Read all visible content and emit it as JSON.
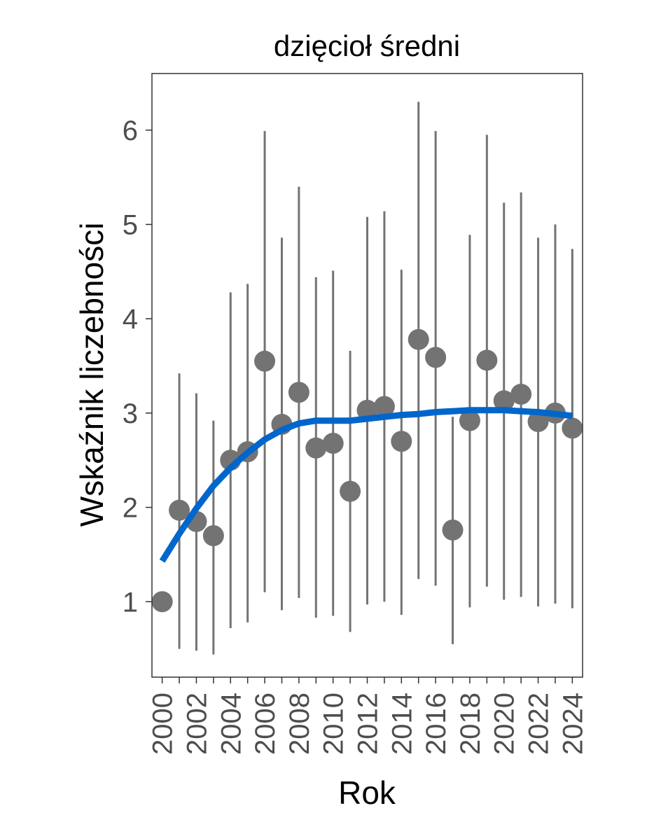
{
  "chart_data": {
    "type": "scatter",
    "title": "dzięcioł średni",
    "xlabel": "Rok",
    "ylabel": "Wskaźnik liczebności",
    "xlim": [
      1999.4,
      2024.6
    ],
    "ylim": [
      0.2,
      6.6
    ],
    "x_ticks": [
      "2000",
      "2002",
      "2004",
      "2006",
      "2008",
      "2010",
      "2012",
      "2014",
      "2016",
      "2018",
      "2020",
      "2022",
      "2024"
    ],
    "y_ticks": [
      "1",
      "2",
      "3",
      "4",
      "5",
      "6"
    ],
    "grid": false,
    "legend": "none",
    "colors": {
      "points": "#737373",
      "errorbars": "#737373",
      "trend": "#0066cc",
      "axis": "#333333"
    },
    "series": [
      {
        "x": [
          2000,
          2001,
          2002,
          2003,
          2004,
          2005,
          2006,
          2007,
          2008,
          2009,
          2010,
          2011,
          2012,
          2013,
          2014,
          2015,
          2016,
          2017,
          2018,
          2019,
          2020,
          2021,
          2022,
          2023,
          2024
        ],
        "y": [
          1.0,
          1.97,
          1.85,
          1.7,
          2.5,
          2.59,
          3.55,
          2.88,
          3.22,
          2.63,
          2.68,
          2.17,
          3.03,
          3.07,
          2.7,
          3.78,
          3.59,
          1.76,
          2.92,
          3.56,
          3.13,
          3.2,
          2.91,
          3.0,
          2.84
        ],
        "lower": [
          null,
          0.5,
          0.48,
          0.44,
          0.72,
          0.78,
          1.1,
          0.91,
          1.04,
          0.83,
          0.85,
          0.68,
          0.97,
          1.0,
          0.86,
          1.24,
          1.17,
          0.55,
          0.94,
          1.16,
          1.02,
          1.05,
          0.95,
          0.98,
          0.93
        ],
        "upper": [
          null,
          3.42,
          3.21,
          2.92,
          4.28,
          4.37,
          5.99,
          4.86,
          5.4,
          4.44,
          4.51,
          3.66,
          5.08,
          5.14,
          4.52,
          6.3,
          5.99,
          2.96,
          4.89,
          5.95,
          5.23,
          5.34,
          4.86,
          5.0,
          4.74
        ]
      }
    ],
    "trend": {
      "x": [
        2000,
        2001,
        2002,
        2003,
        2004,
        2005,
        2006,
        2007,
        2008,
        2009,
        2010,
        2011,
        2012,
        2013,
        2014,
        2015,
        2016,
        2017,
        2018,
        2019,
        2020,
        2021,
        2022,
        2023,
        2024
      ],
      "y": [
        1.43,
        1.72,
        1.99,
        2.23,
        2.42,
        2.58,
        2.72,
        2.82,
        2.89,
        2.92,
        2.92,
        2.92,
        2.94,
        2.96,
        2.98,
        2.99,
        3.01,
        3.02,
        3.03,
        3.03,
        3.03,
        3.02,
        3.01,
        2.99,
        2.97
      ]
    }
  }
}
